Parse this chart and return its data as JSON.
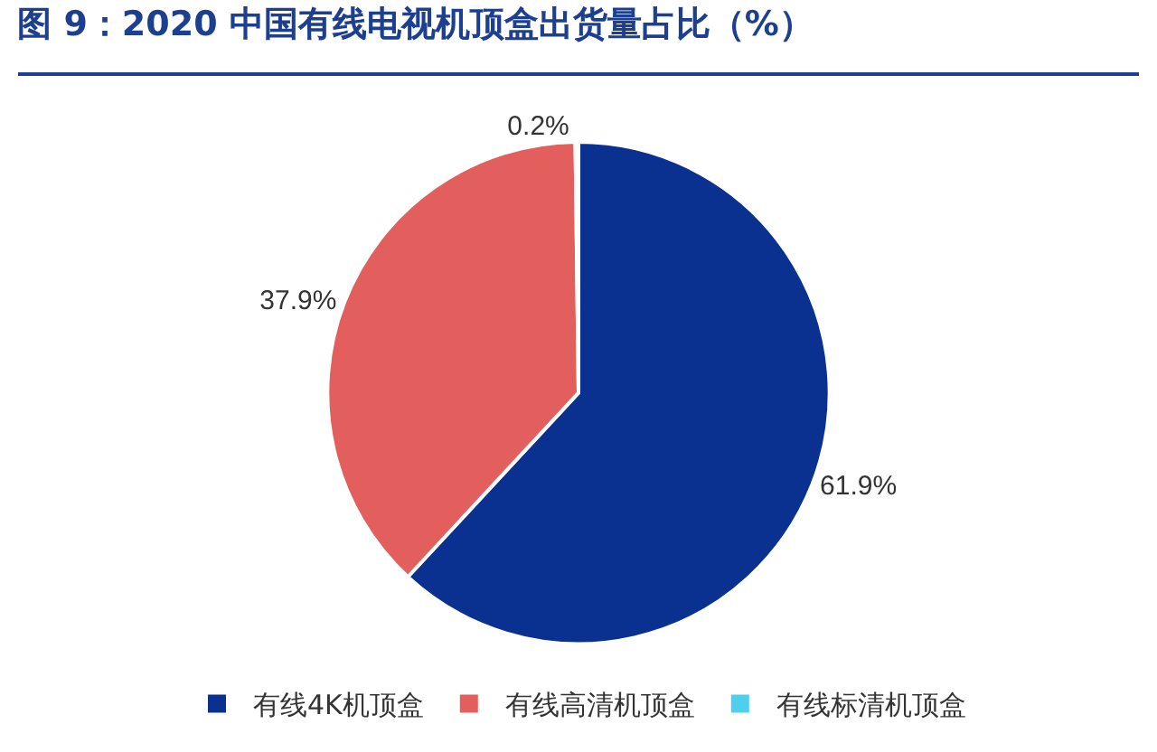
{
  "chart_data": {
    "type": "pie",
    "title": "图 9：2020 中国有线电视机顶盒出货量占比（%）",
    "categories": [
      "有线4K机顶盒",
      "有线高清机顶盒",
      "有线标清机顶盒"
    ],
    "values": [
      61.9,
      37.9,
      0.2
    ],
    "value_labels": [
      "61.9%",
      "37.9%",
      "0.2%"
    ],
    "colors": [
      "#0b3190",
      "#e35f5e",
      "#4fcfee"
    ],
    "legend": "bottom"
  }
}
